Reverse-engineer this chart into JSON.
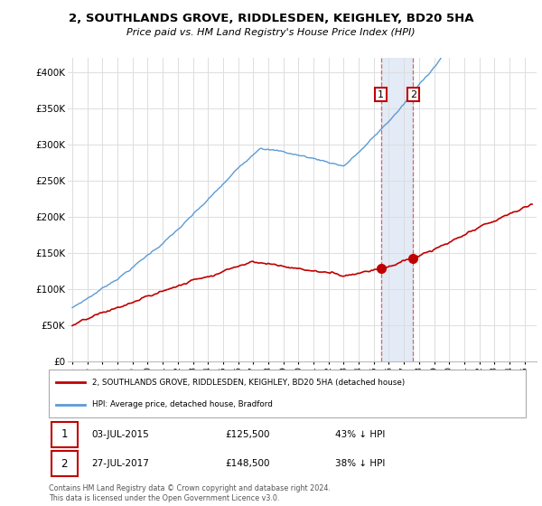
{
  "title": "2, SOUTHLANDS GROVE, RIDDLESDEN, KEIGHLEY, BD20 5HA",
  "subtitle": "Price paid vs. HM Land Registry's House Price Index (HPI)",
  "ylim": [
    0,
    420000
  ],
  "yticks": [
    0,
    50000,
    100000,
    150000,
    200000,
    250000,
    300000,
    350000,
    400000
  ],
  "ytick_labels": [
    "£0",
    "£50K",
    "£100K",
    "£150K",
    "£200K",
    "£250K",
    "£300K",
    "£350K",
    "£400K"
  ],
  "hpi_color": "#5b9bd5",
  "price_color": "#c00000",
  "marker1_year": 2015.5,
  "marker2_year": 2017.58,
  "marker1_price": 125500,
  "marker2_price": 148500,
  "vline_color": "#e06060",
  "shade_color": "#dce6f5",
  "legend_house": "2, SOUTHLANDS GROVE, RIDDLESDEN, KEIGHLEY, BD20 5HA (detached house)",
  "legend_hpi": "HPI: Average price, detached house, Bradford",
  "annot1_date": "03-JUL-2015",
  "annot1_price": "£125,500",
  "annot1_pct": "43% ↓ HPI",
  "annot2_date": "27-JUL-2017",
  "annot2_price": "£148,500",
  "annot2_pct": "38% ↓ HPI",
  "footer": "Contains HM Land Registry data © Crown copyright and database right 2024.\nThis data is licensed under the Open Government Licence v3.0.",
  "grid_color": "#dddddd",
  "xstart": 1995,
  "xend": 2025
}
